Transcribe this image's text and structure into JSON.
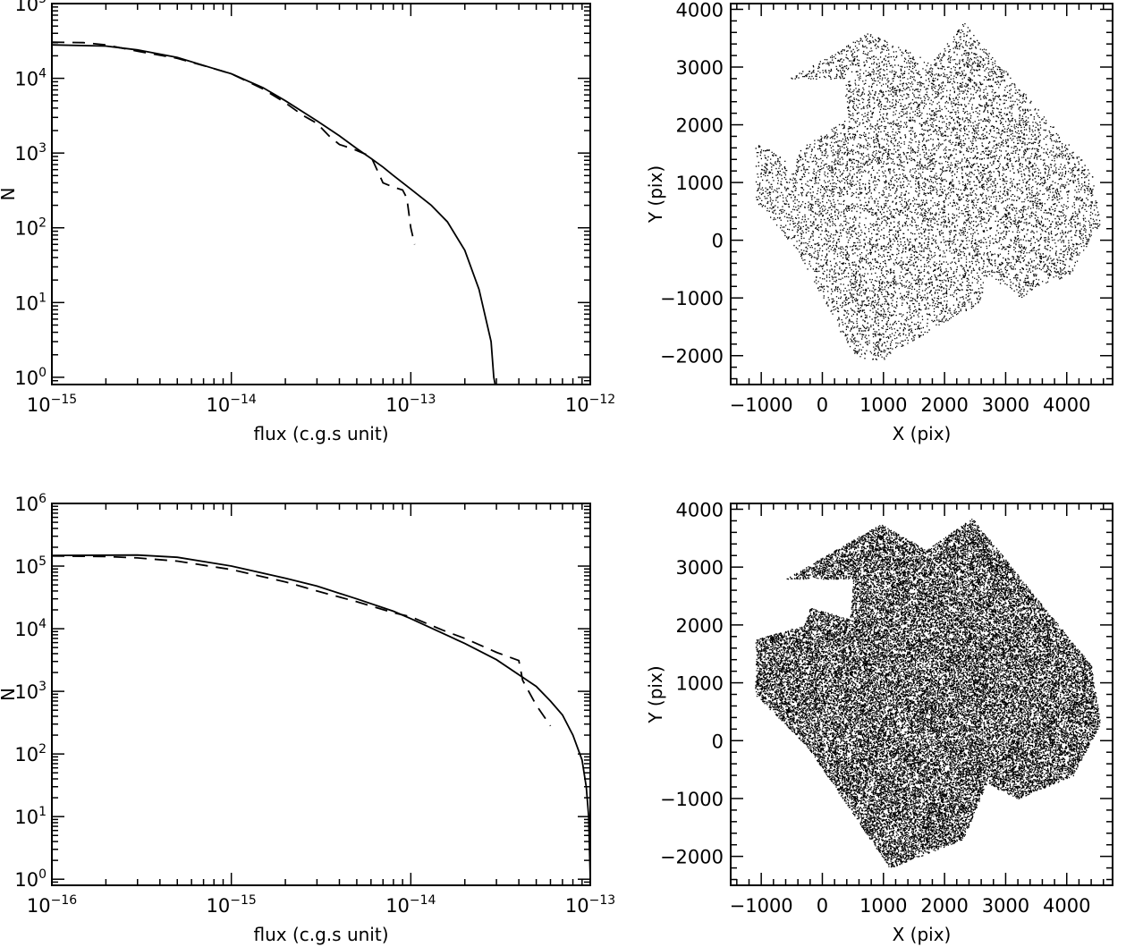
{
  "chart_data": [
    {
      "type": "line",
      "panel": "top-left",
      "xlabel": "flux (c.g.s unit)",
      "ylabel": "N",
      "xscale": "log",
      "yscale": "log",
      "xlim": [
        1e-15,
        1e-12
      ],
      "ylim": [
        0.8,
        100000
      ],
      "x_ticks": [
        {
          "base": "10",
          "exp": "−15",
          "value": 1e-15
        },
        {
          "base": "10",
          "exp": "−14",
          "value": 1e-14
        },
        {
          "base": "10",
          "exp": "−13",
          "value": 1e-13
        },
        {
          "base": "10",
          "exp": "−12",
          "value": 1e-12
        }
      ],
      "y_ticks": [
        {
          "base": "10",
          "exp": "0",
          "value": 1
        },
        {
          "base": "10",
          "exp": "1",
          "value": 10
        },
        {
          "base": "10",
          "exp": "2",
          "value": 100
        },
        {
          "base": "10",
          "exp": "3",
          "value": 1000
        },
        {
          "base": "10",
          "exp": "4",
          "value": 10000
        },
        {
          "base": "10",
          "exp": "5",
          "value": 100000
        }
      ],
      "series": [
        {
          "style": "solid",
          "points": [
            [
              1e-15,
              28000
            ],
            [
              2e-15,
              27000
            ],
            [
              3e-15,
              24000
            ],
            [
              5e-15,
              19000
            ],
            [
              8e-15,
              13500
            ],
            [
              1e-14,
              11500
            ],
            [
              1.5e-14,
              7500
            ],
            [
              2e-14,
              5000
            ],
            [
              3e-14,
              2700
            ],
            [
              4e-14,
              1700
            ],
            [
              5e-14,
              1150
            ],
            [
              6e-14,
              850
            ],
            [
              7e-14,
              650
            ],
            [
              8e-14,
              500
            ],
            [
              1e-13,
              330
            ],
            [
              1.3e-13,
              200
            ],
            [
              1.6e-13,
              120
            ],
            [
              2e-13,
              50
            ],
            [
              2.4e-13,
              15
            ],
            [
              2.8e-13,
              3
            ],
            [
              2.9e-13,
              1
            ],
            [
              2.95e-13,
              0.8
            ]
          ]
        },
        {
          "style": "dashed",
          "points": [
            [
              1e-15,
              30500
            ],
            [
              1.5e-15,
              30000
            ],
            [
              2e-15,
              28000
            ],
            [
              3e-15,
              23000
            ],
            [
              5e-15,
              18500
            ],
            [
              8e-15,
              13500
            ],
            [
              1e-14,
              11500
            ],
            [
              1.5e-14,
              7200
            ],
            [
              2e-14,
              4700
            ],
            [
              2.5e-14,
              3200
            ],
            [
              3e-14,
              2500
            ],
            [
              3.5e-14,
              1700
            ],
            [
              4e-14,
              1300
            ],
            [
              4.7e-14,
              1150
            ],
            [
              6e-14,
              900
            ],
            [
              7e-14,
              400
            ],
            [
              8e-14,
              350
            ],
            [
              9e-14,
              320
            ],
            [
              9.5e-14,
              250
            ],
            [
              1e-13,
              100
            ],
            [
              1.05e-13,
              60
            ]
          ]
        }
      ]
    },
    {
      "type": "scatter",
      "panel": "top-right",
      "xlabel": "X (pix)",
      "ylabel": "Y (pix)",
      "xlim": [
        -1500,
        4750
      ],
      "ylim": [
        -2500,
        4100
      ],
      "x_ticks": [
        "−1000",
        "0",
        "1000",
        "2000",
        "3000",
        "4000"
      ],
      "y_ticks": [
        "−2000",
        "−1000",
        "0",
        "1000",
        "2000",
        "3000",
        "4000"
      ],
      "footprint_polygon": [
        [
          -1100,
          1750
        ],
        [
          -500,
          1300
        ],
        [
          -350,
          1600
        ],
        [
          400,
          2100
        ],
        [
          350,
          2800
        ],
        [
          -550,
          2800
        ],
        [
          750,
          3600
        ],
        [
          1800,
          3100
        ],
        [
          2300,
          3800
        ],
        [
          4400,
          1200
        ],
        [
          4550,
          300
        ],
        [
          4050,
          -600
        ],
        [
          3500,
          -800
        ],
        [
          3250,
          -1000
        ],
        [
          2700,
          -600
        ],
        [
          2550,
          -1100
        ],
        [
          1200,
          -1900
        ],
        [
          950,
          -2100
        ],
        [
          500,
          -2000
        ],
        [
          -400,
          -200
        ],
        [
          -1100,
          700
        ]
      ],
      "point_count": 9000,
      "density": "sparse"
    },
    {
      "type": "line",
      "panel": "bottom-left",
      "xlabel": "flux (c.g.s unit)",
      "ylabel": "N",
      "xscale": "log",
      "yscale": "log",
      "xlim": [
        1e-16,
        1e-13
      ],
      "ylim": [
        0.8,
        1000000
      ],
      "x_ticks": [
        {
          "base": "10",
          "exp": "−16",
          "value": 1e-16
        },
        {
          "base": "10",
          "exp": "−15",
          "value": 1e-15
        },
        {
          "base": "10",
          "exp": "−14",
          "value": 1e-14
        },
        {
          "base": "10",
          "exp": "−13",
          "value": 1e-13
        }
      ],
      "y_ticks": [
        {
          "base": "10",
          "exp": "0",
          "value": 1
        },
        {
          "base": "10",
          "exp": "1",
          "value": 10
        },
        {
          "base": "10",
          "exp": "2",
          "value": 100
        },
        {
          "base": "10",
          "exp": "3",
          "value": 1000
        },
        {
          "base": "10",
          "exp": "4",
          "value": 10000
        },
        {
          "base": "10",
          "exp": "5",
          "value": 100000
        },
        {
          "base": "10",
          "exp": "6",
          "value": 1000000
        }
      ],
      "series": [
        {
          "style": "solid",
          "points": [
            [
              1e-16,
              148000
            ],
            [
              3e-16,
              150000
            ],
            [
              5e-16,
              138000
            ],
            [
              1e-15,
              100000
            ],
            [
              2e-15,
              64000
            ],
            [
              3e-15,
              48000
            ],
            [
              5e-15,
              30000
            ],
            [
              8e-15,
              19000
            ],
            [
              1e-14,
              14500
            ],
            [
              2e-14,
              5800
            ],
            [
              3e-14,
              3200
            ],
            [
              5e-14,
              1200
            ],
            [
              6e-14,
              700
            ],
            [
              7e-14,
              420
            ],
            [
              8e-14,
              200
            ],
            [
              9e-14,
              80
            ],
            [
              9.5e-14,
              30
            ],
            [
              9.8e-14,
              10
            ],
            [
              1e-13,
              1
            ]
          ]
        },
        {
          "style": "dashed",
          "points": [
            [
              1e-16,
              145000
            ],
            [
              2e-16,
              142000
            ],
            [
              3e-16,
              135000
            ],
            [
              5e-16,
              120000
            ],
            [
              1e-15,
              88000
            ],
            [
              2e-15,
              56000
            ],
            [
              3e-15,
              40000
            ],
            [
              5e-15,
              27000
            ],
            [
              8e-15,
              18000
            ],
            [
              1e-14,
              15500
            ],
            [
              1.5e-14,
              9500
            ],
            [
              2e-14,
              7000
            ],
            [
              3e-14,
              4200
            ],
            [
              4e-14,
              3100
            ],
            [
              4.2e-14,
              1500
            ],
            [
              5e-14,
              600
            ],
            [
              6e-14,
              280
            ]
          ]
        }
      ]
    },
    {
      "type": "scatter",
      "panel": "bottom-right",
      "xlabel": "X (pix)",
      "ylabel": "Y (pix)",
      "xlim": [
        -1500,
        4750
      ],
      "ylim": [
        -2500,
        4100
      ],
      "x_ticks": [
        "−1000",
        "0",
        "1000",
        "2000",
        "3000",
        "4000"
      ],
      "y_ticks": [
        "−2000",
        "−1000",
        "0",
        "1000",
        "2000",
        "3000",
        "4000"
      ],
      "footprint_polygon": [
        [
          -1100,
          1750
        ],
        [
          -300,
          2000
        ],
        [
          -200,
          2300
        ],
        [
          450,
          2100
        ],
        [
          500,
          2800
        ],
        [
          -600,
          2800
        ],
        [
          950,
          3750
        ],
        [
          1700,
          3300
        ],
        [
          2450,
          3850
        ],
        [
          4400,
          1300
        ],
        [
          4550,
          300
        ],
        [
          4100,
          -600
        ],
        [
          3200,
          -1000
        ],
        [
          2800,
          -800
        ],
        [
          2700,
          -700
        ],
        [
          2300,
          -1700
        ],
        [
          1100,
          -2200
        ],
        [
          -250,
          -100
        ],
        [
          -1100,
          800
        ]
      ],
      "point_count": 40000,
      "density": "dense"
    }
  ]
}
